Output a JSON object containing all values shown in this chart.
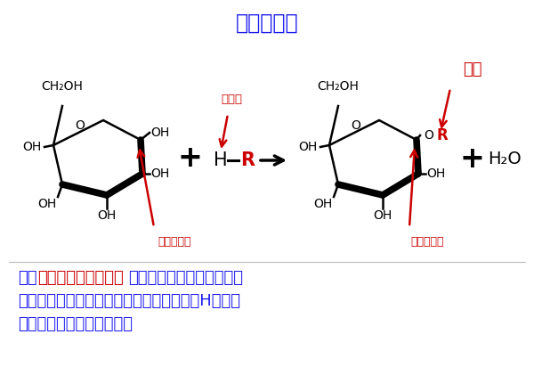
{
  "title": "糖成苷反应",
  "title_color": "#1a1aee",
  "title_fontsize": 17,
  "bg_color": "#ffffff",
  "black": "#000000",
  "red": "#cc0000",
  "blue": "#1a1aee",
  "desc_parts": [
    {
      "text": "糖的",
      "color": "#1a1aee",
      "bold": false
    },
    {
      "text": "半缩醛（或酮）羟基",
      "color": "#cc0000",
      "bold": true
    },
    {
      "text": "与另一个分子（如醇、糖、",
      "color": "#1a1aee",
      "bold": false
    },
    {
      "text": "\n嘌呤或嘧啶）的羟基、胺基或巯基上的活性H发生脱\n水缩合反应，则会形成苷。",
      "color": "#1a1aee",
      "bold": false
    }
  ],
  "desc_fontsize": 13
}
